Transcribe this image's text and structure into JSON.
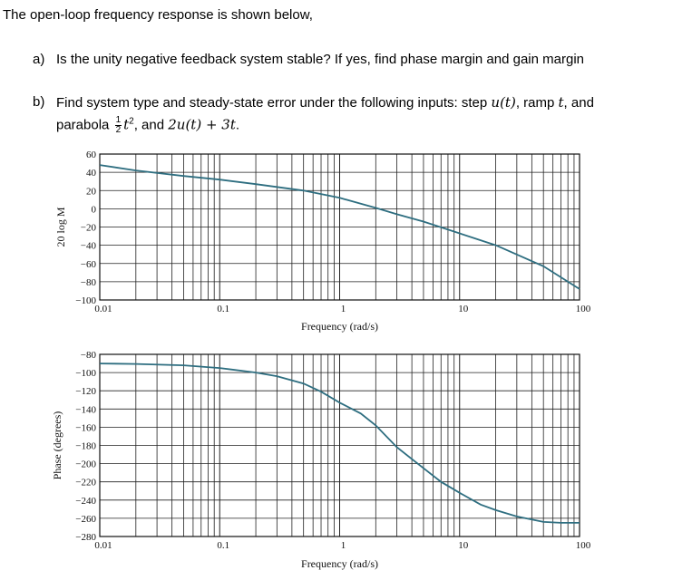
{
  "question": {
    "intro": "The open-loop frequency response is shown below,",
    "part_a": {
      "label": "a)",
      "text": "Is the unity negative feedback system stable? If yes, find phase margin and gain margin"
    },
    "part_b": {
      "label": "b)",
      "line1_prefix": "Find system type and steady-state error under the following inputs: step ",
      "u_t": "u(t)",
      "line1_mid": ", ramp ",
      "t": "t",
      "line1_suffix": ", and",
      "line2_prefix": "parabola ",
      "frac_num": "1",
      "frac_den": "2",
      "t2": "t",
      "sup2": "2",
      "line2_mid": ", and ",
      "expr": "2u(t) + 3t",
      "line2_end": "."
    }
  },
  "chart_data": [
    {
      "type": "line",
      "title": "",
      "xlabel": "Frequency (rad/s)",
      "ylabel": "20 log M",
      "xscale": "log",
      "xlim": [
        0.01,
        100
      ],
      "ylim": [
        -100,
        60
      ],
      "xticks": [
        "0.01",
        "0.1",
        "1",
        "10",
        "100"
      ],
      "yticks": [
        "60",
        "40",
        "20",
        "0",
        "−20",
        "−40",
        "−60",
        "−80",
        "−100"
      ],
      "grid": true,
      "color": "#2e6e80",
      "series": [
        {
          "x": [
            0.01,
            0.02,
            0.05,
            0.1,
            0.2,
            0.5,
            1,
            2,
            3,
            5,
            10,
            20,
            50,
            100
          ],
          "y": [
            48,
            42,
            36,
            32,
            27,
            20,
            12,
            1,
            -6,
            -14,
            -27,
            -40,
            -63,
            -88
          ]
        }
      ]
    },
    {
      "type": "line",
      "title": "",
      "xlabel": "Frequency (rad/s)",
      "ylabel": "Phase (degrees)",
      "xscale": "log",
      "xlim": [
        0.01,
        100
      ],
      "ylim": [
        -280,
        -80
      ],
      "xticks": [
        "0.01",
        "0.1",
        "1",
        "10",
        "100"
      ],
      "yticks": [
        "−80",
        "−100",
        "−120",
        "−140",
        "−160",
        "−180",
        "−200",
        "−220",
        "−240",
        "−260",
        "−280"
      ],
      "grid": true,
      "color": "#2e6e80",
      "series": [
        {
          "x": [
            0.01,
            0.02,
            0.05,
            0.1,
            0.2,
            0.3,
            0.5,
            0.7,
            1,
            1.5,
            2,
            3,
            5,
            7,
            10,
            15,
            20,
            30,
            50,
            70,
            100
          ],
          "y": [
            -90,
            -90.5,
            -92,
            -95,
            -100,
            -104,
            -112,
            -121,
            -133,
            -145,
            -158,
            -182,
            -205,
            -220,
            -232,
            -245,
            -251,
            -258,
            -264,
            -265,
            -265
          ]
        }
      ]
    }
  ]
}
